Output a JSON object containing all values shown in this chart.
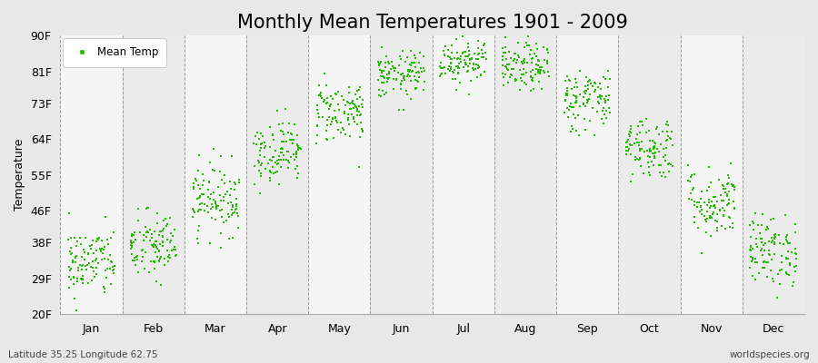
{
  "title": "Monthly Mean Temperatures 1901 - 2009",
  "ylabel": "Temperature",
  "yticks": [
    20,
    29,
    38,
    46,
    55,
    64,
    73,
    81,
    90
  ],
  "ytick_labels": [
    "20F",
    "29F",
    "38F",
    "46F",
    "55F",
    "64F",
    "73F",
    "81F",
    "90F"
  ],
  "ylim": [
    20,
    90
  ],
  "months": [
    "Jan",
    "Feb",
    "Mar",
    "Apr",
    "May",
    "Jun",
    "Jul",
    "Aug",
    "Sep",
    "Oct",
    "Nov",
    "Dec"
  ],
  "month_means_f": [
    33,
    37,
    49,
    61,
    71,
    80,
    84,
    82,
    74,
    62,
    48,
    36
  ],
  "month_std_f": [
    4.5,
    4.5,
    4.5,
    4,
    4,
    3,
    3,
    3,
    4,
    4,
    4.5,
    4.5
  ],
  "n_years": 109,
  "marker_color": "#22bb00",
  "marker_size": 2.5,
  "legend_label": "Mean Temp",
  "bg_color": "#e8e8e8",
  "band_color_odd": "#ebebeb",
  "band_color_even": "#f5f5f5",
  "subtitle_left": "Latitude 35.25 Longitude 62.75",
  "subtitle_right": "worldspecies.org",
  "title_fontsize": 15,
  "axis_fontsize": 9,
  "tick_fontsize": 9
}
